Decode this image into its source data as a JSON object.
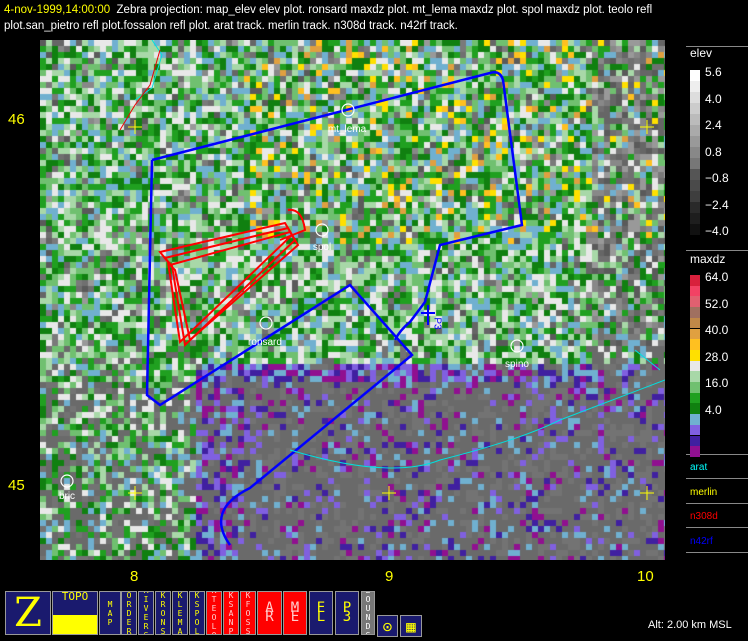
{
  "header": {
    "time": "4-nov-1999,14:00:00",
    "line1": "Zebra projection: map_elev elev plot.  ronsard maxdz  plot.  mt_lema maxdz  plot.  spol maxdz  plot.  teolo refl",
    "line2": "plot.san_pietro refl plot.fossalon refl plot. arat track.   merlin track.   n308d track.   n42rf track."
  },
  "axes": {
    "lat": [
      "46",
      "45"
    ],
    "lon": [
      "8",
      "9",
      "10"
    ]
  },
  "stations": [
    "mt_lema",
    "spol",
    "ronsard",
    "spino",
    "bric"
  ],
  "aircraft_label": "P3",
  "legend": {
    "elev": {
      "title": "elev",
      "labels": [
        "5.6",
        "4.0",
        "2.4",
        "0.8",
        "−0.8",
        "−2.4",
        "−4.0"
      ],
      "colors": [
        "#ffffff",
        "#eeeeee",
        "#dddddd",
        "#cccccc",
        "#bbbbbb",
        "#aaaaaa",
        "#999999",
        "#888888",
        "#777777",
        "#555555",
        "#4a4a4a",
        "#3e3e3e",
        "#2a2a2a",
        "#1e1e1e",
        "#111111"
      ]
    },
    "maxdz": {
      "title": "maxdz",
      "labels": [
        "64.0",
        "52.0",
        "40.0",
        "28.0",
        "16.0",
        "4.0"
      ],
      "colors": [
        "#d8203c",
        "#f24264",
        "#e06070",
        "#a07060",
        "#c08848",
        "#e0a040",
        "#ffc020",
        "#ffe000",
        "#e8e8e8",
        "#a8d8a8",
        "#70c070",
        "#20a020",
        "#108010",
        "#70b0d0",
        "#8060e0",
        "#4020a0",
        "#901090"
      ]
    },
    "tracks": [
      {
        "name": "arat",
        "color": "#00ffff"
      },
      {
        "name": "merlin",
        "color": "#ffff00"
      },
      {
        "name": "n308d",
        "color": "#ff0000"
      },
      {
        "name": "n42rf",
        "color": "#0000ff"
      }
    ]
  },
  "toolbar": {
    "buttons": [
      "Z",
      "TOPO",
      "MAP",
      "BORDERS",
      "RIVERS",
      "KRONS",
      "KLEMA",
      "KSPOL",
      "KTEOLO",
      "KSANP",
      "KFOSS",
      "AR",
      "ME",
      "EL",
      "P3",
      "BOUNDS",
      "⊙",
      "▦"
    ]
  },
  "status": {
    "altitude": "Alt: 2.00 km MSL"
  }
}
